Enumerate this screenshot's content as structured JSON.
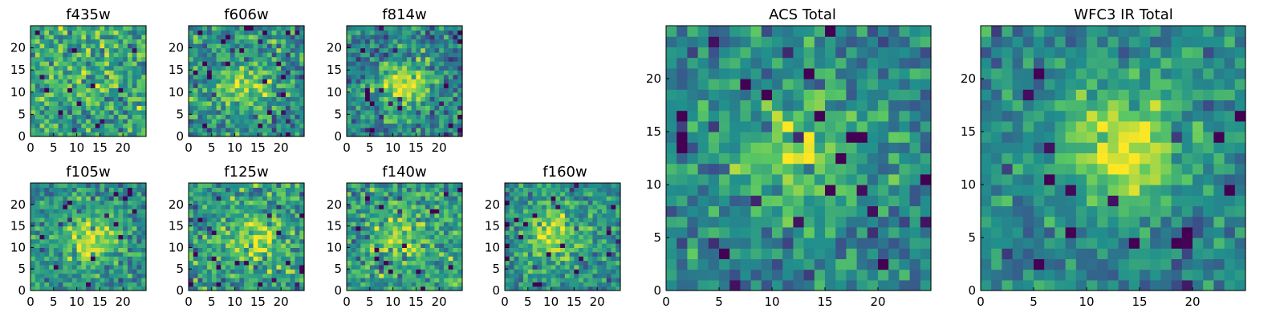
{
  "figure": {
    "colormap": [
      "#440154",
      "#3b528b",
      "#21908d",
      "#5dc962",
      "#fde725"
    ]
  },
  "chart_data": [
    {
      "type": "heatmap",
      "title": "f435w",
      "grid": [
        25,
        25
      ],
      "xlim": [
        0,
        25
      ],
      "ylim": [
        0,
        25
      ],
      "xticks": [
        0,
        5,
        10,
        15,
        20
      ],
      "yticks": [
        0,
        5,
        10,
        15,
        20
      ],
      "peak": [
        12,
        12
      ],
      "peak_strength": 0.05,
      "base_level": 0.6,
      "noise_level": 0.45,
      "seed": 11
    },
    {
      "type": "heatmap",
      "title": "f606w",
      "grid": [
        25,
        25
      ],
      "xlim": [
        0,
        25
      ],
      "ylim": [
        0,
        25
      ],
      "xticks": [
        0,
        5,
        10,
        15,
        20
      ],
      "yticks": [
        0,
        5,
        10,
        15,
        20
      ],
      "peak": [
        12,
        11
      ],
      "peak_strength": 0.35,
      "base_level": 0.5,
      "noise_level": 0.45,
      "seed": 23
    },
    {
      "type": "heatmap",
      "title": "f814w",
      "grid": [
        25,
        25
      ],
      "xlim": [
        0,
        25
      ],
      "ylim": [
        0,
        25
      ],
      "xticks": [
        0,
        5,
        10,
        15,
        20
      ],
      "yticks": [
        0,
        5,
        10,
        15,
        20
      ],
      "peak": [
        12,
        11
      ],
      "peak_strength": 0.45,
      "base_level": 0.45,
      "noise_level": 0.45,
      "seed": 37
    },
    {
      "type": "heatmap",
      "title": "f105w",
      "grid": [
        25,
        25
      ],
      "xlim": [
        0,
        25
      ],
      "ylim": [
        0,
        25
      ],
      "xticks": [
        0,
        5,
        10,
        15,
        20
      ],
      "yticks": [
        0,
        5,
        10,
        15,
        20
      ],
      "peak": [
        13,
        12
      ],
      "peak_strength": 0.45,
      "base_level": 0.5,
      "noise_level": 0.4,
      "seed": 41
    },
    {
      "type": "heatmap",
      "title": "f125w",
      "grid": [
        25,
        25
      ],
      "xlim": [
        0,
        25
      ],
      "ylim": [
        0,
        25
      ],
      "xticks": [
        0,
        5,
        10,
        15,
        20
      ],
      "yticks": [
        0,
        5,
        10,
        15,
        20
      ],
      "peak": [
        14,
        12
      ],
      "peak_strength": 0.3,
      "base_level": 0.55,
      "noise_level": 0.45,
      "seed": 53
    },
    {
      "type": "heatmap",
      "title": "f140w",
      "grid": [
        25,
        25
      ],
      "xlim": [
        0,
        25
      ],
      "ylim": [
        0,
        25
      ],
      "xticks": [
        0,
        5,
        10,
        15,
        20
      ],
      "yticks": [
        0,
        5,
        10,
        15,
        20
      ],
      "peak": [
        12,
        12
      ],
      "peak_strength": 0.25,
      "base_level": 0.55,
      "noise_level": 0.45,
      "seed": 67
    },
    {
      "type": "heatmap",
      "title": "f160w",
      "grid": [
        25,
        25
      ],
      "xlim": [
        0,
        25
      ],
      "ylim": [
        0,
        25
      ],
      "xticks": [
        0,
        5,
        10,
        15,
        20
      ],
      "yticks": [
        0,
        5,
        10,
        15,
        20
      ],
      "peak": [
        10,
        13
      ],
      "peak_strength": 0.4,
      "base_level": 0.5,
      "noise_level": 0.4,
      "seed": 79
    },
    {
      "type": "heatmap",
      "title": "ACS Total",
      "grid": [
        25,
        25
      ],
      "xlim": [
        0,
        25
      ],
      "ylim": [
        0,
        25
      ],
      "xticks": [
        0,
        5,
        10,
        15,
        20
      ],
      "yticks": [
        0,
        5,
        10,
        15,
        20
      ],
      "peak": [
        12,
        12
      ],
      "peak_strength": 0.4,
      "base_level": 0.45,
      "noise_level": 0.4,
      "seed": 97
    },
    {
      "type": "heatmap",
      "title": "WFC3 IR Total",
      "grid": [
        25,
        25
      ],
      "xlim": [
        0,
        25
      ],
      "ylim": [
        0,
        25
      ],
      "xticks": [
        0,
        5,
        10,
        15,
        20
      ],
      "yticks": [
        0,
        5,
        10,
        15,
        20
      ],
      "peak": [
        13,
        13
      ],
      "peak_strength": 0.5,
      "base_level": 0.45,
      "noise_level": 0.32,
      "seed": 113
    }
  ]
}
